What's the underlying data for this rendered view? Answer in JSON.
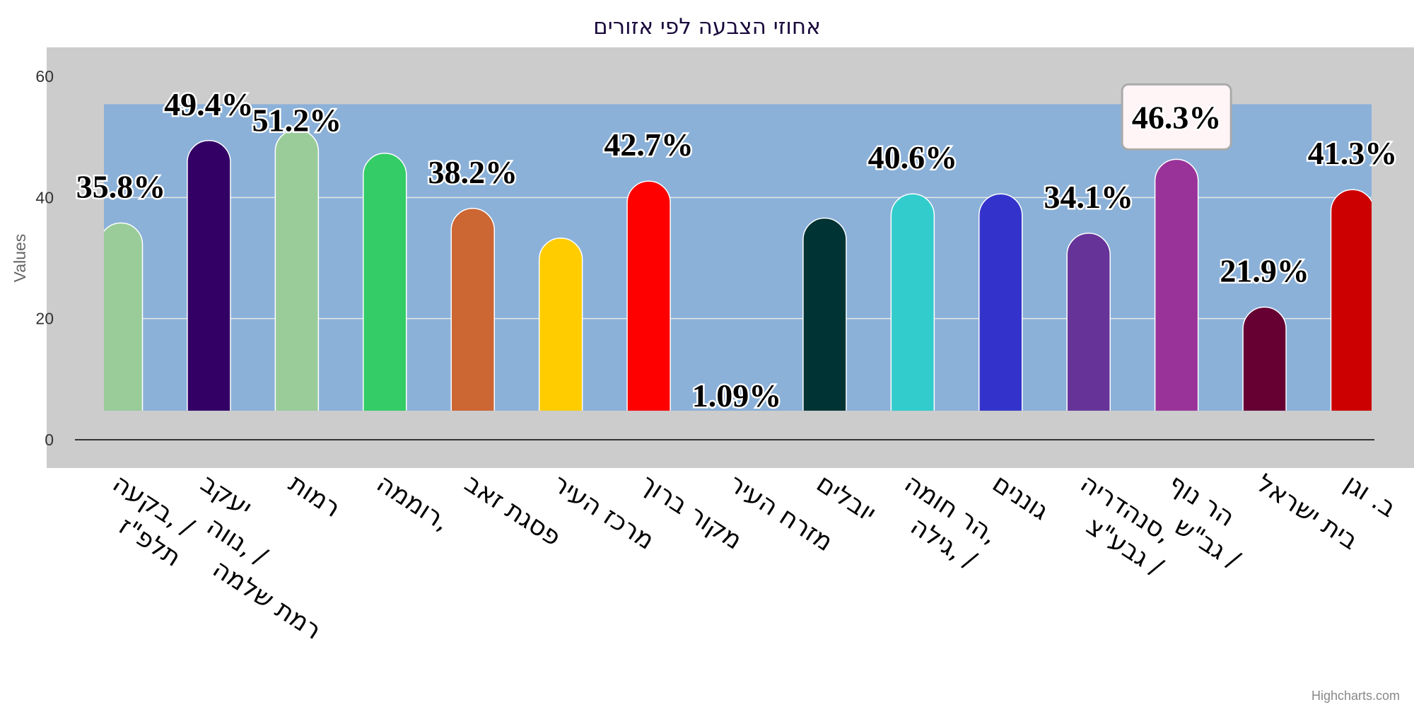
{
  "chart_data": {
    "type": "bar",
    "title": "אחוזי הצבעה לפי אזורים",
    "ylabel": "Values",
    "xlabel": "",
    "ylim": [
      0,
      60
    ],
    "yticks": [
      "0",
      "20",
      "40",
      "60"
    ],
    "grid": true,
    "legend": "none",
    "plot_band": {
      "from": 4.8,
      "to": 55.4,
      "color": "#8bb1d9"
    },
    "plot_background": "#cccccc",
    "categories": [
      [
        "בקעה, /",
        "תלפ\"ז"
      ],
      [
        "יעקב",
        "נווה, /",
        "רמת שלמה"
      ],
      [
        "רמות"
      ],
      [
        "רוממה,"
      ],
      [
        "פסגת זאב"
      ],
      [
        "מרכז העיר"
      ],
      [
        "מקור ברוך"
      ],
      [
        "מזרח העיר"
      ],
      [
        "יובלים"
      ],
      [
        "הר חומה,",
        "גילה, /"
      ],
      [
        "גוננים"
      ],
      [
        "סנהדריה,",
        "גבע\"צ /"
      ],
      [
        "הר נוף",
        "גב\"ש /"
      ],
      [
        "בית ישראל"
      ],
      [
        "ב. וגן"
      ]
    ],
    "values": [
      35.8,
      49.4,
      51.2,
      47.3,
      38.2,
      33.3,
      42.7,
      1.09,
      36.6,
      40.6,
      40.6,
      34.1,
      46.3,
      21.9,
      41.3
    ],
    "data_labels": [
      "35.8%",
      "49.4%",
      "51.2%",
      null,
      "38.2%",
      null,
      "42.7%",
      "1.09%",
      null,
      "40.6%",
      null,
      "34.1%",
      "46.3%",
      "21.9%",
      "41.3%"
    ],
    "highlighted_label_index": 12,
    "colors": [
      "#99cc99",
      "#330066",
      "#99cc99",
      "#33cc66",
      "#cc6633",
      "#ffcc00",
      "#ff0000",
      "#0066cc",
      "#003333",
      "#33cccc",
      "#3333cc",
      "#663399",
      "#993399",
      "#660033",
      "#cc0000"
    ]
  },
  "credit": "Highcharts.com"
}
